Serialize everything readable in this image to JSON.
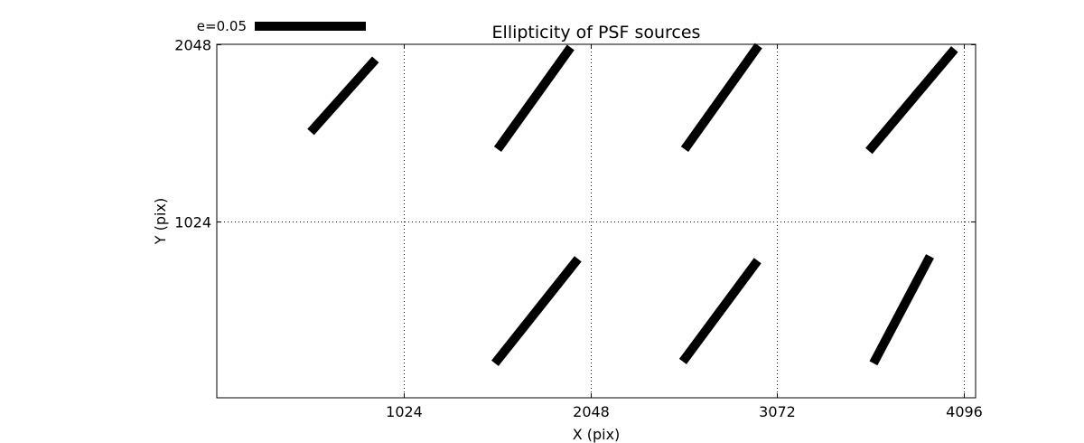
{
  "chart_data": {
    "type": "vector-field",
    "title": "Ellipticity of PSF sources",
    "xlabel": "X (pix)",
    "ylabel": "Y (pix)",
    "xlim": [
      0,
      4160
    ],
    "ylim": [
      0,
      2048
    ],
    "x_ticks": [
      1024,
      2048,
      3072,
      4096
    ],
    "x_tick_labels": [
      "1024",
      "2048",
      "3072",
      "4096"
    ],
    "y_ticks": [
      1024,
      2048
    ],
    "y_tick_labels": [
      "1024",
      "2048"
    ],
    "grid": "dotted",
    "legend": {
      "label": "e=0.05",
      "e": 0.05,
      "placement": "top-left"
    },
    "vectors": [
      {
        "x": 515,
        "y": 1540,
        "dx": 355,
        "dy": 420
      },
      {
        "x": 1540,
        "y": 1440,
        "dx": 400,
        "dy": 590
      },
      {
        "x": 2565,
        "y": 1440,
        "dx": 405,
        "dy": 600
      },
      {
        "x": 3575,
        "y": 1430,
        "dx": 470,
        "dy": 590
      },
      {
        "x": 1525,
        "y": 200,
        "dx": 455,
        "dy": 605
      },
      {
        "x": 2555,
        "y": 210,
        "dx": 410,
        "dy": 585
      },
      {
        "x": 3600,
        "y": 200,
        "dx": 310,
        "dy": 620
      }
    ]
  }
}
